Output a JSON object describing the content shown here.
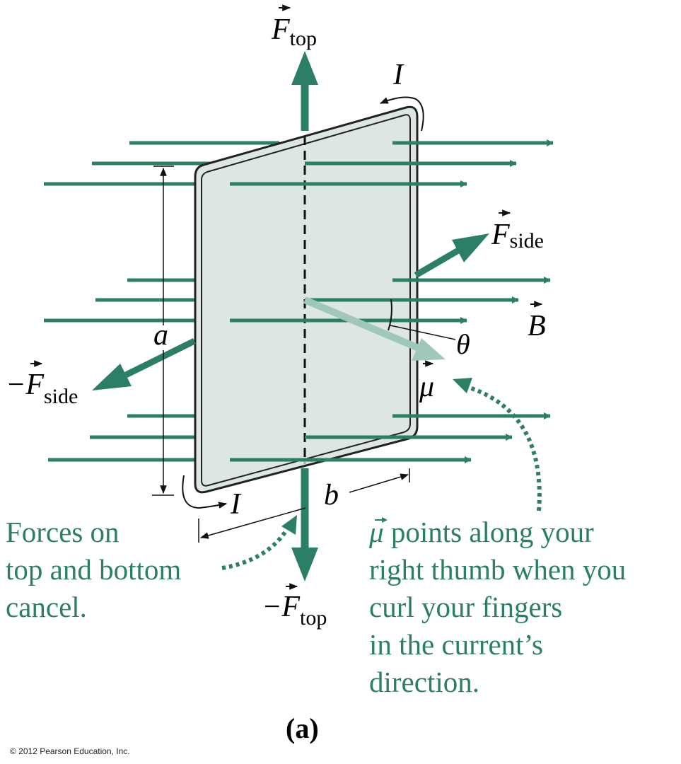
{
  "labels": {
    "f_top_symbol": "F",
    "f_top_sub": "top",
    "neg_f_top_symbol": "−F",
    "neg_f_top_sub": "top",
    "f_side_symbol": "F",
    "f_side_sub": "side",
    "neg_f_side_symbol": "−F",
    "neg_f_side_sub": "side",
    "b_field": "B",
    "mu": "μ",
    "theta": "θ",
    "current_top": "I",
    "current_bottom": "I",
    "side_a": "a",
    "side_b": "b",
    "part": "(a)"
  },
  "captions": {
    "forces_cancel": "Forces on\ntop and bottom\ncancel.",
    "mu_rule_symbol": "μ",
    "mu_rule_text": " points along your\nright thumb when you\ncurl your fingers\nin the current’s\ndirection."
  },
  "copyright": "© 2012 Pearson Education, Inc.",
  "colors": {
    "accent": "#2a7f66",
    "mu_arrow": "#9fc8b9",
    "loop_fill": "#dde6e2",
    "loop_edge": "#222222"
  }
}
